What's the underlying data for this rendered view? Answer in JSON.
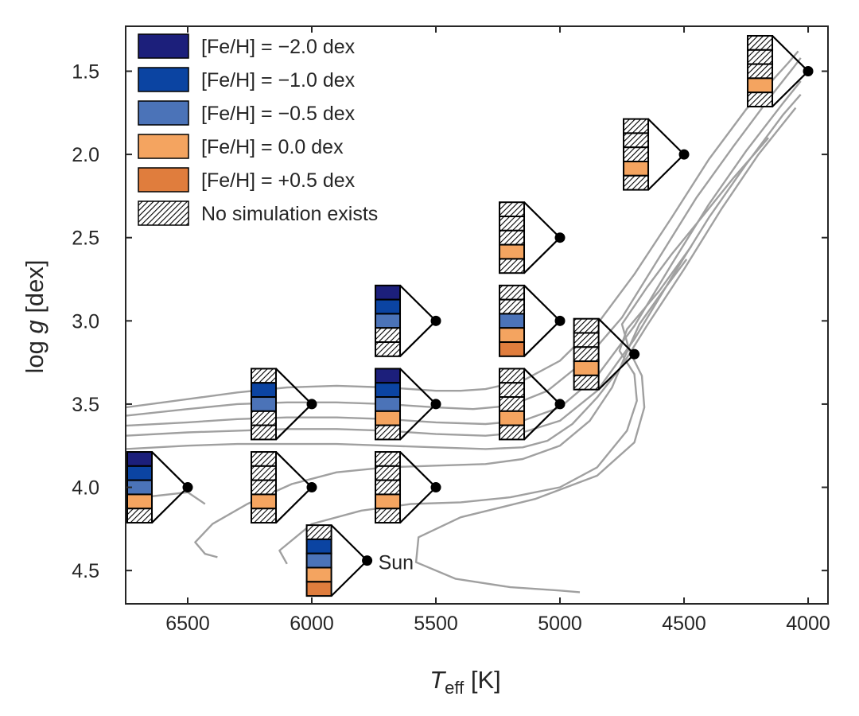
{
  "chart_data": {
    "type": "scatter",
    "title": "",
    "xlabel_main": "T",
    "xlabel_sub": "eff",
    "xlabel_unit": " [K]",
    "ylabel_main": "log ",
    "ylabel_var": "g",
    "ylabel_unit": " [dex]",
    "xlim": [
      6750,
      3920
    ],
    "ylim": [
      4.7,
      1.23
    ],
    "xticks": [
      6500,
      6000,
      5500,
      5000,
      4500,
      4000
    ],
    "yticks": [
      1.5,
      2.0,
      2.5,
      3.0,
      3.5,
      4.0,
      4.5
    ],
    "ytick_labels": [
      "1.5",
      "2.0",
      "2.5",
      "3.0",
      "3.5",
      "4.0",
      "4.5"
    ],
    "grid": false,
    "legend_position": "top-left",
    "metallicity_levels": [
      "-2.0",
      "-1.0",
      "-0.5",
      "0.0",
      "+0.5"
    ],
    "colors": {
      "-2.0": "#1c1f7b",
      "-1.0": "#0b44a2",
      "-0.5": "#4b73b8",
      "0.0": "#f4a460",
      "+0.5": "#e07d3d",
      "none": "hatch",
      "isochrone": "#a0a0a0",
      "point": "#000000"
    },
    "legend": [
      {
        "key": "-2.0",
        "label": "[Fe/H] = −2.0 dex"
      },
      {
        "key": "-1.0",
        "label": "[Fe/H] = −1.0 dex"
      },
      {
        "key": "-0.5",
        "label": "[Fe/H] = −0.5 dex"
      },
      {
        "key": "0.0",
        "label": "[Fe/H] = 0.0 dex"
      },
      {
        "key": "+0.5",
        "label": "[Fe/H] = +0.5 dex"
      },
      {
        "key": "none",
        "label": "No simulation exists"
      }
    ],
    "points": [
      {
        "teff": 6500,
        "logg": 4.0,
        "sims": [
          "-2.0",
          "-1.0",
          "-0.5",
          "0.0",
          null
        ]
      },
      {
        "teff": 6000,
        "logg": 3.5,
        "sims": [
          null,
          "-1.0",
          "-0.5",
          null,
          null
        ]
      },
      {
        "teff": 6000,
        "logg": 4.0,
        "sims": [
          null,
          null,
          null,
          "0.0",
          null
        ]
      },
      {
        "teff": 5500,
        "logg": 3.0,
        "sims": [
          "-2.0",
          "-1.0",
          "-0.5",
          null,
          null
        ]
      },
      {
        "teff": 5500,
        "logg": 3.5,
        "sims": [
          "-2.0",
          "-1.0",
          "-0.5",
          "0.0",
          null
        ]
      },
      {
        "teff": 5500,
        "logg": 4.0,
        "sims": [
          null,
          null,
          null,
          "0.0",
          null
        ]
      },
      {
        "teff": 5777,
        "logg": 4.44,
        "label": "Sun",
        "sims": [
          null,
          "-1.0",
          "-0.5",
          "0.0",
          "+0.5"
        ]
      },
      {
        "teff": 5000,
        "logg": 2.5,
        "sims": [
          null,
          null,
          null,
          "0.0",
          null
        ]
      },
      {
        "teff": 5000,
        "logg": 3.0,
        "sims": [
          null,
          null,
          "-0.5",
          "0.0",
          "+0.5"
        ]
      },
      {
        "teff": 5000,
        "logg": 3.5,
        "sims": [
          null,
          null,
          null,
          "0.0",
          null
        ]
      },
      {
        "teff": 4700,
        "logg": 3.2,
        "sims": [
          null,
          null,
          null,
          "0.0",
          null
        ]
      },
      {
        "teff": 4500,
        "logg": 2.0,
        "sims": [
          null,
          null,
          null,
          "0.0",
          null
        ]
      },
      {
        "teff": 4000,
        "logg": 1.5,
        "sims": [
          null,
          null,
          null,
          "0.0",
          null
        ]
      }
    ],
    "isochrones": [
      [
        [
          6750,
          3.52
        ],
        [
          6500,
          3.47
        ],
        [
          6300,
          3.43
        ],
        [
          6100,
          3.4
        ],
        [
          5900,
          3.39
        ],
        [
          5700,
          3.4
        ],
        [
          5500,
          3.42
        ],
        [
          5400,
          3.42
        ],
        [
          5300,
          3.41
        ],
        [
          5150,
          3.36
        ],
        [
          5000,
          3.24
        ],
        [
          4850,
          3.02
        ],
        [
          4700,
          2.72
        ],
        [
          4550,
          2.38
        ],
        [
          4400,
          2.03
        ],
        [
          4250,
          1.73
        ],
        [
          4080,
          1.45
        ],
        [
          4040,
          1.38
        ]
      ],
      [
        [
          6750,
          3.57
        ],
        [
          6500,
          3.53
        ],
        [
          6300,
          3.5
        ],
        [
          6100,
          3.49
        ],
        [
          5900,
          3.49
        ],
        [
          5700,
          3.5
        ],
        [
          5500,
          3.52
        ],
        [
          5350,
          3.53
        ],
        [
          5200,
          3.51
        ],
        [
          5050,
          3.42
        ],
        [
          4900,
          3.24
        ],
        [
          4750,
          2.98
        ],
        [
          4600,
          2.62
        ],
        [
          4450,
          2.26
        ],
        [
          4300,
          1.95
        ],
        [
          4150,
          1.65
        ],
        [
          4060,
          1.48
        ],
        [
          4030,
          1.42
        ]
      ],
      [
        [
          6750,
          3.63
        ],
        [
          6500,
          3.61
        ],
        [
          6300,
          3.59
        ],
        [
          6100,
          3.58
        ],
        [
          5900,
          3.58
        ],
        [
          5700,
          3.59
        ],
        [
          5500,
          3.61
        ],
        [
          5300,
          3.62
        ],
        [
          5150,
          3.6
        ],
        [
          5000,
          3.52
        ],
        [
          4850,
          3.33
        ],
        [
          4700,
          3.03
        ],
        [
          4550,
          2.66
        ],
        [
          4400,
          2.3
        ],
        [
          4250,
          1.98
        ],
        [
          4100,
          1.69
        ],
        [
          4030,
          1.56
        ]
      ],
      [
        [
          6750,
          3.69
        ],
        [
          6500,
          3.67
        ],
        [
          6300,
          3.66
        ],
        [
          6100,
          3.65
        ],
        [
          5900,
          3.65
        ],
        [
          5700,
          3.66
        ],
        [
          5500,
          3.68
        ],
        [
          5300,
          3.69
        ],
        [
          5150,
          3.67
        ],
        [
          5000,
          3.6
        ],
        [
          4850,
          3.42
        ],
        [
          4700,
          3.11
        ],
        [
          4550,
          2.74
        ],
        [
          4400,
          2.38
        ],
        [
          4250,
          2.06
        ],
        [
          4100,
          1.76
        ],
        [
          4030,
          1.64
        ]
      ],
      [
        [
          6750,
          3.77
        ],
        [
          6500,
          3.75
        ],
        [
          6300,
          3.74
        ],
        [
          6100,
          3.74
        ],
        [
          5900,
          3.74
        ],
        [
          5700,
          3.75
        ],
        [
          5500,
          3.76
        ],
        [
          5300,
          3.77
        ],
        [
          5150,
          3.76
        ],
        [
          5050,
          3.72
        ],
        [
          4950,
          3.62
        ],
        [
          4850,
          3.46
        ],
        [
          4750,
          3.27
        ],
        [
          4650,
          3.03
        ],
        [
          4500,
          2.69
        ],
        [
          4350,
          2.33
        ],
        [
          4200,
          2.0
        ],
        [
          4050,
          1.72
        ]
      ],
      [
        [
          6380,
          4.42
        ],
        [
          6430,
          4.4
        ],
        [
          6470,
          4.33
        ],
        [
          6400,
          4.22
        ],
        [
          6260,
          4.1
        ],
        [
          6080,
          3.98
        ],
        [
          5900,
          3.91
        ],
        [
          5700,
          3.88
        ],
        [
          5500,
          3.87
        ],
        [
          5300,
          3.86
        ],
        [
          5150,
          3.83
        ],
        [
          5000,
          3.75
        ],
        [
          4880,
          3.6
        ],
        [
          4790,
          3.4
        ],
        [
          4740,
          3.22
        ],
        [
          4680,
          3.02
        ],
        [
          4590,
          2.83
        ],
        [
          4490,
          2.63
        ]
      ],
      [
        [
          6430,
          4.1
        ],
        [
          6500,
          4.03
        ],
        [
          6620,
          4.05
        ],
        [
          6750,
          4.07
        ]
      ],
      [
        [
          6100,
          4.46
        ],
        [
          6130,
          4.38
        ],
        [
          6000,
          4.22
        ],
        [
          5800,
          4.14
        ],
        [
          5600,
          4.1
        ],
        [
          5400,
          4.09
        ],
        [
          5200,
          4.06
        ],
        [
          5000,
          4.0
        ],
        [
          4850,
          3.88
        ],
        [
          4730,
          3.66
        ],
        [
          4690,
          3.48
        ],
        [
          4700,
          3.32
        ],
        [
          4760,
          3.18
        ],
        [
          4730,
          3.05
        ],
        [
          4600,
          2.82
        ],
        [
          4470,
          2.55
        ]
      ],
      [
        [
          4920,
          4.63
        ],
        [
          5000,
          4.62
        ],
        [
          5200,
          4.6
        ],
        [
          5420,
          4.55
        ],
        [
          5580,
          4.45
        ],
        [
          5570,
          4.3
        ],
        [
          5400,
          4.18
        ],
        [
          5100,
          4.07
        ],
        [
          4850,
          3.93
        ],
        [
          4700,
          3.73
        ],
        [
          4660,
          3.52
        ],
        [
          4670,
          3.33
        ],
        [
          4720,
          3.18
        ],
        [
          4750,
          3.02
        ],
        [
          4650,
          2.8
        ],
        [
          4550,
          2.6
        ],
        [
          4430,
          2.38
        ],
        [
          4300,
          2.14
        ],
        [
          4160,
          1.9
        ]
      ]
    ]
  }
}
